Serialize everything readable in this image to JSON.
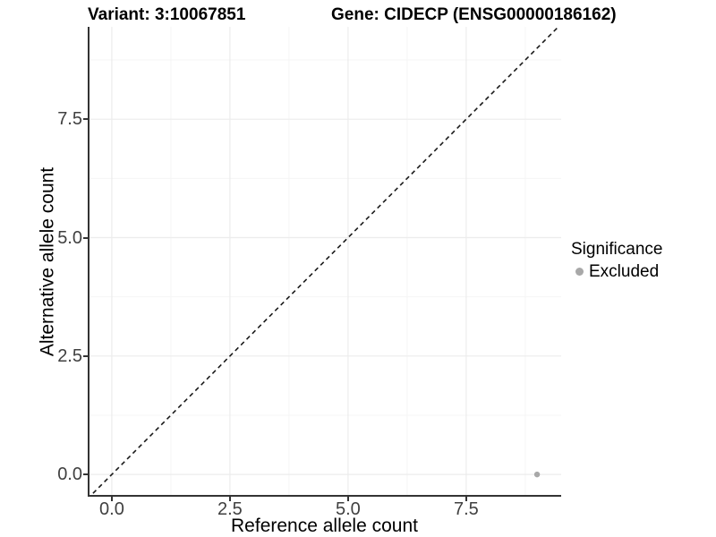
{
  "header": {
    "variant_title": "Variant: 3:10067851",
    "gene_title": "Gene: CIDECP (ENSG00000186162)"
  },
  "axes": {
    "x": {
      "label": "Reference allele count"
    },
    "y": {
      "label": "Alternative allele count"
    }
  },
  "legend": {
    "title": "Significance",
    "items": [
      {
        "label": "Excluded",
        "color": "#a8a8a8"
      }
    ]
  },
  "colors": {
    "point": "#a8a8a8",
    "axis_line": "#333333",
    "tick_text": "#404040",
    "grid_major": "#ececec",
    "grid_minor": "#f5f5f5",
    "reference_line": "#1a1a1a",
    "background": "#ffffff"
  },
  "chart_data": {
    "type": "scatter",
    "title": "Variant: 3:10067851 | Gene: CIDECP (ENSG00000186162)",
    "xlabel": "Reference allele count",
    "ylabel": "Alternative allele count",
    "xlim": [
      -0.51,
      9.51
    ],
    "ylim": [
      -0.47,
      9.45
    ],
    "x_ticks": {
      "values": [
        0,
        2.5,
        5.0,
        7.5
      ],
      "labels": [
        "0.0",
        "2.5",
        "5.0",
        "7.5"
      ]
    },
    "y_ticks": {
      "values": [
        0,
        2.5,
        5.0,
        7.5
      ],
      "labels": [
        "0.0",
        "2.5",
        "5.0",
        "7.5"
      ]
    },
    "minor_gridlines": [
      1.25,
      3.75,
      6.25,
      8.75
    ],
    "grid": "major+minor",
    "legend_position": "right",
    "legend_title": "Significance",
    "reference_line": {
      "type": "identity",
      "slope": 1,
      "intercept": 0,
      "style": "dashed"
    },
    "series": [
      {
        "name": "Excluded",
        "color": "#a8a8a8",
        "points": [
          {
            "x": 9,
            "y": 0
          }
        ]
      }
    ]
  }
}
